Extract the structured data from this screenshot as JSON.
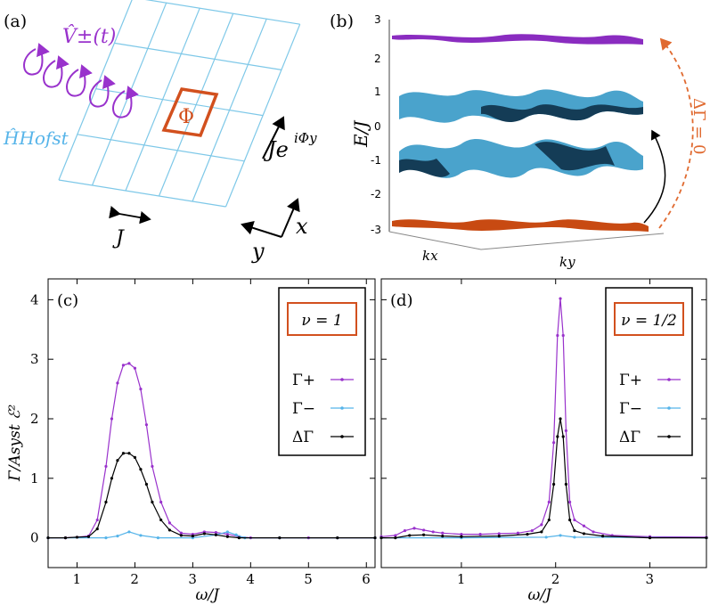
{
  "panel_labels": {
    "a": "(a)",
    "b": "(b)",
    "c": "(c)",
    "d": "(d)"
  },
  "panel_a": {
    "drive_label": "V̂±(t)",
    "ham_label": "ĤHofst",
    "flux_label": "Φ",
    "hopping_label": "Je",
    "hopping_exp": "iΦy",
    "J_label": "J",
    "x_label": "x",
    "y_label": "y"
  },
  "panel_b": {
    "ylabel": "E/J",
    "yticks": [
      "3",
      "2",
      "1",
      "0",
      "-1",
      "-2",
      "-3"
    ],
    "kx_label": "kx",
    "ky_label": "ky",
    "dgamma_label": "ΔΓ = 0"
  },
  "colors": {
    "gamma_plus": "#9932cc",
    "gamma_minus": "#56b4e9",
    "delta_gamma": "#000000",
    "flux_box": "#d2501e",
    "band_top": "#8a2cc0",
    "band_mid": "#4aa3cc",
    "band_mid_dark": "#143c56",
    "band_bottom": "#c84a12"
  },
  "chart_data": [
    {
      "panel": "(c)",
      "type": "line",
      "nu_label": "ν = 1",
      "xlabel": "ω/J",
      "ylabel": "Γ/Asyst ℰ²",
      "xlim": [
        0.5,
        6.15
      ],
      "ylim": [
        -0.5,
        4.35
      ],
      "xticks": [
        1,
        2,
        3,
        4,
        5,
        6
      ],
      "yticks": [
        0,
        1,
        2,
        3,
        4
      ],
      "legend": [
        "Γ+",
        "Γ−",
        "ΔΓ"
      ],
      "series": [
        {
          "name": "Γ+",
          "points": [
            [
              0.5,
              0
            ],
            [
              0.8,
              0
            ],
            [
              1.0,
              0.01
            ],
            [
              1.2,
              0.03
            ],
            [
              1.35,
              0.3
            ],
            [
              1.5,
              1.2
            ],
            [
              1.6,
              2.0
            ],
            [
              1.7,
              2.6
            ],
            [
              1.8,
              2.9
            ],
            [
              1.9,
              2.93
            ],
            [
              2.0,
              2.85
            ],
            [
              2.1,
              2.5
            ],
            [
              2.2,
              1.9
            ],
            [
              2.3,
              1.2
            ],
            [
              2.45,
              0.6
            ],
            [
              2.6,
              0.25
            ],
            [
              2.8,
              0.08
            ],
            [
              3.0,
              0.06
            ],
            [
              3.2,
              0.1
            ],
            [
              3.4,
              0.09
            ],
            [
              3.6,
              0.06
            ],
            [
              3.8,
              0.02
            ],
            [
              4.0,
              0
            ],
            [
              4.5,
              0
            ],
            [
              5.0,
              0
            ],
            [
              5.5,
              0
            ],
            [
              6.15,
              0
            ]
          ]
        },
        {
          "name": "Γ−",
          "points": [
            [
              0.5,
              0
            ],
            [
              1.5,
              0
            ],
            [
              1.7,
              0.03
            ],
            [
              1.9,
              0.1
            ],
            [
              2.1,
              0.04
            ],
            [
              2.4,
              0
            ],
            [
              3.0,
              0
            ],
            [
              3.4,
              0.05
            ],
            [
              3.6,
              0.1
            ],
            [
              3.75,
              0.05
            ],
            [
              3.9,
              0
            ],
            [
              4.5,
              0
            ],
            [
              5.5,
              0
            ],
            [
              6.15,
              0
            ]
          ]
        },
        {
          "name": "ΔΓ",
          "points": [
            [
              0.5,
              0
            ],
            [
              0.8,
              0
            ],
            [
              1.0,
              0.01
            ],
            [
              1.2,
              0.02
            ],
            [
              1.35,
              0.15
            ],
            [
              1.5,
              0.6
            ],
            [
              1.6,
              1.0
            ],
            [
              1.7,
              1.3
            ],
            [
              1.8,
              1.42
            ],
            [
              1.9,
              1.42
            ],
            [
              2.0,
              1.35
            ],
            [
              2.1,
              1.15
            ],
            [
              2.2,
              0.9
            ],
            [
              2.3,
              0.6
            ],
            [
              2.45,
              0.3
            ],
            [
              2.6,
              0.13
            ],
            [
              2.8,
              0.04
            ],
            [
              3.0,
              0.03
            ],
            [
              3.2,
              0.07
            ],
            [
              3.4,
              0.05
            ],
            [
              3.6,
              0.02
            ],
            [
              3.8,
              0
            ],
            [
              4.5,
              0
            ],
            [
              5.5,
              0
            ],
            [
              6.15,
              0
            ]
          ]
        }
      ]
    },
    {
      "panel": "(d)",
      "type": "line",
      "nu_label": "ν = 1/2",
      "xlabel": "ω/J",
      "ylabel": "",
      "xlim": [
        0.15,
        3.6
      ],
      "ylim": [
        -0.5,
        4.35
      ],
      "xticks": [
        1,
        2,
        3
      ],
      "yticks": [
        0,
        1,
        2,
        3,
        4
      ],
      "legend": [
        "Γ+",
        "Γ−",
        "ΔΓ"
      ],
      "series": [
        {
          "name": "Γ+",
          "points": [
            [
              0.15,
              0.02
            ],
            [
              0.3,
              0.04
            ],
            [
              0.4,
              0.12
            ],
            [
              0.5,
              0.16
            ],
            [
              0.6,
              0.13
            ],
            [
              0.7,
              0.1
            ],
            [
              0.8,
              0.08
            ],
            [
              1.0,
              0.06
            ],
            [
              1.2,
              0.06
            ],
            [
              1.4,
              0.07
            ],
            [
              1.6,
              0.08
            ],
            [
              1.75,
              0.12
            ],
            [
              1.85,
              0.22
            ],
            [
              1.93,
              0.6
            ],
            [
              1.98,
              1.6
            ],
            [
              2.02,
              3.4
            ],
            [
              2.05,
              4.02
            ],
            [
              2.08,
              3.4
            ],
            [
              2.11,
              1.8
            ],
            [
              2.15,
              0.6
            ],
            [
              2.2,
              0.3
            ],
            [
              2.3,
              0.2
            ],
            [
              2.4,
              0.1
            ],
            [
              2.6,
              0.04
            ],
            [
              3.0,
              0.02
            ],
            [
              3.6,
              0.01
            ]
          ]
        },
        {
          "name": "Γ−",
          "points": [
            [
              0.15,
              0
            ],
            [
              1.0,
              0
            ],
            [
              1.9,
              0.01
            ],
            [
              2.05,
              0.04
            ],
            [
              2.2,
              0.01
            ],
            [
              3.6,
              0
            ]
          ]
        },
        {
          "name": "ΔΓ",
          "points": [
            [
              0.15,
              0
            ],
            [
              0.3,
              0
            ],
            [
              0.45,
              0.04
            ],
            [
              0.6,
              0.05
            ],
            [
              0.8,
              0.03
            ],
            [
              1.0,
              0.02
            ],
            [
              1.4,
              0.03
            ],
            [
              1.7,
              0.06
            ],
            [
              1.85,
              0.1
            ],
            [
              1.93,
              0.3
            ],
            [
              1.98,
              0.9
            ],
            [
              2.02,
              1.7
            ],
            [
              2.05,
              2.0
            ],
            [
              2.08,
              1.7
            ],
            [
              2.11,
              0.9
            ],
            [
              2.15,
              0.3
            ],
            [
              2.2,
              0.12
            ],
            [
              2.3,
              0.07
            ],
            [
              2.5,
              0.03
            ],
            [
              3.0,
              0
            ],
            [
              3.6,
              0
            ]
          ]
        }
      ]
    }
  ]
}
